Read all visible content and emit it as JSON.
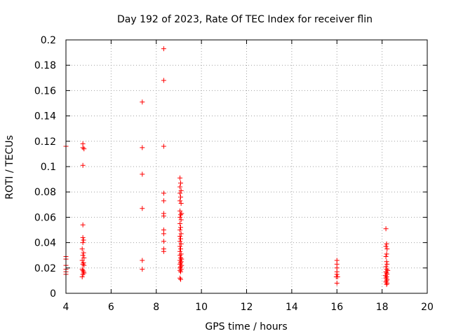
{
  "chart_data": {
    "type": "scatter",
    "title": "Day 192 of 2023, Rate Of TEC Index for receiver flin",
    "xlabel": "GPS time / hours",
    "ylabel": "ROTI / TECUs",
    "xlim": [
      4,
      20
    ],
    "ylim": [
      0,
      0.2
    ],
    "xticks": [
      "4",
      "6",
      "8",
      "10",
      "12",
      "14",
      "16",
      "18",
      "20"
    ],
    "yticks": [
      "0",
      "0.02",
      "0.04",
      "0.06",
      "0.08",
      "0.1",
      "0.12",
      "0.14",
      "0.16",
      "0.18",
      "0.2"
    ],
    "grid": true,
    "marker": "plus",
    "color": "#ff0000",
    "series": [
      {
        "points": [
          [
            4.0,
            0.116
          ],
          [
            4.0,
            0.029
          ],
          [
            4.0,
            0.027
          ],
          [
            4.0,
            0.022
          ],
          [
            4.0,
            0.019
          ],
          [
            4.0,
            0.017
          ],
          [
            4.0,
            0.015
          ],
          [
            4.75,
            0.118
          ],
          [
            4.75,
            0.115
          ],
          [
            4.8,
            0.114
          ],
          [
            4.75,
            0.101
          ],
          [
            4.75,
            0.054
          ],
          [
            4.75,
            0.044
          ],
          [
            4.78,
            0.042
          ],
          [
            4.75,
            0.04
          ],
          [
            4.72,
            0.035
          ],
          [
            4.78,
            0.032
          ],
          [
            4.75,
            0.03
          ],
          [
            4.8,
            0.028
          ],
          [
            4.72,
            0.026
          ],
          [
            4.78,
            0.024
          ],
          [
            4.75,
            0.023
          ],
          [
            4.8,
            0.022
          ],
          [
            4.72,
            0.019
          ],
          [
            4.75,
            0.018
          ],
          [
            4.78,
            0.017
          ],
          [
            4.8,
            0.016
          ],
          [
            4.75,
            0.015
          ],
          [
            4.72,
            0.013
          ],
          [
            7.38,
            0.151
          ],
          [
            7.38,
            0.115
          ],
          [
            7.38,
            0.094
          ],
          [
            7.38,
            0.067
          ],
          [
            7.38,
            0.026
          ],
          [
            7.38,
            0.019
          ],
          [
            8.33,
            0.193
          ],
          [
            8.33,
            0.168
          ],
          [
            8.33,
            0.116
          ],
          [
            8.33,
            0.079
          ],
          [
            8.33,
            0.073
          ],
          [
            8.33,
            0.063
          ],
          [
            8.33,
            0.061
          ],
          [
            8.33,
            0.05
          ],
          [
            8.33,
            0.047
          ],
          [
            8.33,
            0.041
          ],
          [
            8.33,
            0.035
          ],
          [
            8.33,
            0.033
          ],
          [
            9.05,
            0.091
          ],
          [
            9.08,
            0.087
          ],
          [
            9.05,
            0.084
          ],
          [
            9.1,
            0.081
          ],
          [
            9.05,
            0.079
          ],
          [
            9.08,
            0.076
          ],
          [
            9.05,
            0.073
          ],
          [
            9.1,
            0.071
          ],
          [
            9.05,
            0.065
          ],
          [
            9.12,
            0.063
          ],
          [
            9.08,
            0.062
          ],
          [
            9.05,
            0.06
          ],
          [
            9.1,
            0.058
          ],
          [
            9.05,
            0.055
          ],
          [
            9.08,
            0.052
          ],
          [
            9.05,
            0.05
          ],
          [
            9.1,
            0.047
          ],
          [
            9.05,
            0.045
          ],
          [
            9.08,
            0.043
          ],
          [
            9.05,
            0.041
          ],
          [
            9.1,
            0.039
          ],
          [
            9.05,
            0.037
          ],
          [
            9.08,
            0.035
          ],
          [
            9.05,
            0.033
          ],
          [
            9.1,
            0.031
          ],
          [
            9.05,
            0.03
          ],
          [
            9.08,
            0.028
          ],
          [
            9.12,
            0.027
          ],
          [
            9.05,
            0.026
          ],
          [
            9.1,
            0.025
          ],
          [
            9.08,
            0.024
          ],
          [
            9.05,
            0.023
          ],
          [
            9.12,
            0.022
          ],
          [
            9.08,
            0.021
          ],
          [
            9.05,
            0.02
          ],
          [
            9.1,
            0.019
          ],
          [
            9.05,
            0.018
          ],
          [
            9.08,
            0.017
          ],
          [
            9.05,
            0.012
          ],
          [
            9.08,
            0.011
          ],
          [
            16.0,
            0.026
          ],
          [
            16.0,
            0.023
          ],
          [
            16.0,
            0.02
          ],
          [
            16.0,
            0.017
          ],
          [
            16.0,
            0.015
          ],
          [
            15.97,
            0.013
          ],
          [
            16.03,
            0.013
          ],
          [
            16.0,
            0.008
          ],
          [
            18.17,
            0.051
          ],
          [
            18.2,
            0.039
          ],
          [
            18.17,
            0.037
          ],
          [
            18.22,
            0.035
          ],
          [
            18.2,
            0.031
          ],
          [
            18.17,
            0.029
          ],
          [
            18.2,
            0.025
          ],
          [
            18.22,
            0.023
          ],
          [
            18.17,
            0.021
          ],
          [
            18.2,
            0.019
          ],
          [
            18.25,
            0.018
          ],
          [
            18.17,
            0.017
          ],
          [
            18.2,
            0.016
          ],
          [
            18.22,
            0.015
          ],
          [
            18.15,
            0.014
          ],
          [
            18.2,
            0.013
          ],
          [
            18.17,
            0.012
          ],
          [
            18.22,
            0.011
          ],
          [
            18.2,
            0.01
          ],
          [
            18.17,
            0.009
          ],
          [
            18.22,
            0.008
          ],
          [
            18.2,
            0.007
          ]
        ]
      }
    ]
  }
}
